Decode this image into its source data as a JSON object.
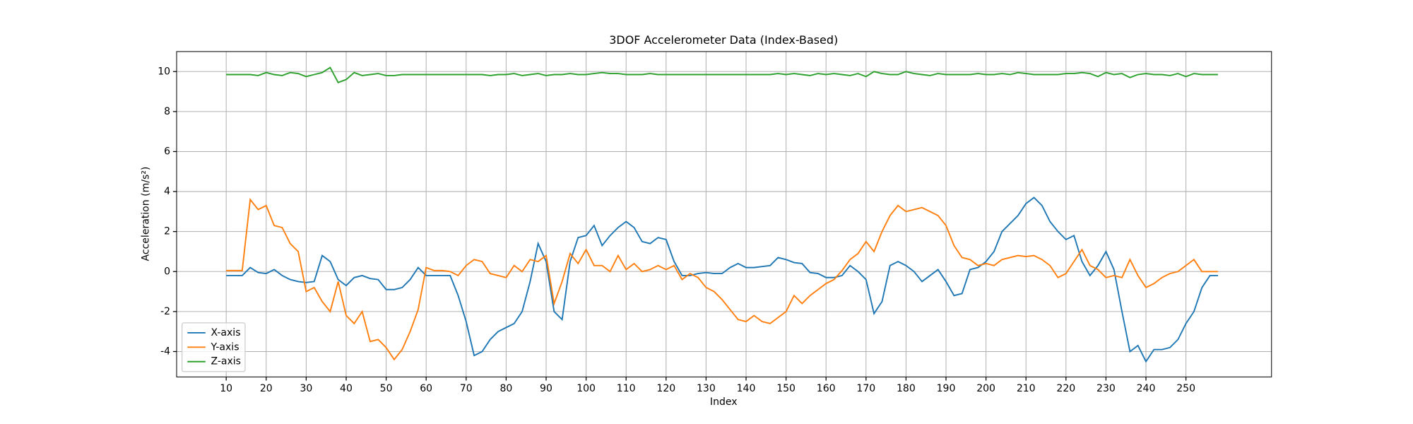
{
  "chart_data": {
    "type": "line",
    "title": "3DOF Accelerometer Data (Index-Based)",
    "x_label": "Index",
    "y_label": "Acceleration (m/s²)",
    "x": [
      10,
      12,
      14,
      16,
      18,
      20,
      22,
      24,
      26,
      28,
      30,
      32,
      34,
      36,
      38,
      40,
      42,
      44,
      46,
      48,
      50,
      52,
      54,
      56,
      58,
      60,
      62,
      64,
      66,
      68,
      70,
      72,
      74,
      76,
      78,
      80,
      82,
      84,
      86,
      88,
      90,
      92,
      94,
      96,
      98,
      100,
      102,
      104,
      106,
      108,
      110,
      112,
      114,
      116,
      118,
      120,
      122,
      124,
      126,
      128,
      130,
      132,
      134,
      136,
      138,
      140,
      142,
      144,
      146,
      148,
      150,
      152,
      154,
      156,
      158,
      160,
      162,
      164,
      166,
      168,
      170,
      172,
      174,
      176,
      178,
      180,
      182,
      184,
      186,
      188,
      190,
      192,
      194,
      196,
      198,
      200,
      202,
      204,
      206,
      208,
      210,
      212,
      214,
      216,
      218,
      220,
      222,
      224,
      226,
      228,
      230,
      232,
      234,
      236,
      238,
      240,
      242,
      244,
      246,
      248,
      250,
      252,
      254,
      256,
      258
    ],
    "series": [
      {
        "name": "X-axis",
        "color": "#1f77b4",
        "values": [
          -0.2,
          -0.2,
          -0.2,
          0.2,
          -0.05,
          -0.1,
          0.1,
          -0.2,
          -0.4,
          -0.5,
          -0.55,
          -0.5,
          0.8,
          0.5,
          -0.4,
          -0.7,
          -0.3,
          -0.2,
          -0.35,
          -0.4,
          -0.9,
          -0.9,
          -0.8,
          -0.4,
          0.2,
          -0.2,
          -0.2,
          -0.2,
          -0.2,
          -1.2,
          -2.5,
          -4.2,
          -4.0,
          -3.4,
          -3.0,
          -2.8,
          -2.6,
          -2.0,
          -0.5,
          1.4,
          0.5,
          -2.0,
          -2.4,
          0.5,
          1.7,
          1.8,
          2.3,
          1.3,
          1.8,
          2.2,
          2.5,
          2.2,
          1.5,
          1.4,
          1.7,
          1.6,
          0.5,
          -0.2,
          -0.2,
          -0.1,
          -0.05,
          -0.1,
          -0.1,
          0.2,
          0.4,
          0.2,
          0.2,
          0.25,
          0.3,
          0.7,
          0.6,
          0.45,
          0.4,
          -0.05,
          -0.1,
          -0.3,
          -0.3,
          -0.2,
          0.3,
          0.0,
          -0.4,
          -2.1,
          -1.5,
          0.3,
          0.5,
          0.3,
          0.0,
          -0.5,
          -0.2,
          0.1,
          -0.5,
          -1.2,
          -1.1,
          0.1,
          0.2,
          0.5,
          1.0,
          2.0,
          2.4,
          2.8,
          3.4,
          3.7,
          3.3,
          2.5,
          2.0,
          1.6,
          1.8,
          0.5,
          -0.2,
          0.3,
          1.0,
          0.1,
          -2.0,
          -4.0,
          -3.7,
          -4.5,
          -3.9,
          -3.9,
          -3.8,
          -3.4,
          -2.6,
          -2.0,
          -0.8,
          -0.2,
          -0.2
        ]
      },
      {
        "name": "Y-axis",
        "color": "#ff7f0e",
        "values": [
          0.05,
          0.05,
          0.05,
          3.6,
          3.1,
          3.3,
          2.3,
          2.2,
          1.4,
          1.0,
          -1.0,
          -0.8,
          -1.5,
          -2.0,
          -0.5,
          -2.2,
          -2.6,
          -2.0,
          -3.5,
          -3.4,
          -3.8,
          -4.4,
          -3.9,
          -3.0,
          -1.9,
          0.2,
          0.05,
          0.05,
          0.0,
          -0.2,
          0.3,
          0.6,
          0.5,
          -0.1,
          -0.2,
          -0.3,
          0.3,
          0.0,
          0.6,
          0.5,
          0.8,
          -1.6,
          -0.5,
          0.9,
          0.4,
          1.1,
          0.3,
          0.3,
          0.0,
          0.8,
          0.1,
          0.4,
          0.0,
          0.1,
          0.3,
          0.1,
          0.3,
          -0.4,
          -0.1,
          -0.3,
          -0.8,
          -1.0,
          -1.4,
          -1.9,
          -2.4,
          -2.5,
          -2.2,
          -2.5,
          -2.6,
          -2.3,
          -2.0,
          -1.2,
          -1.6,
          -1.2,
          -0.9,
          -0.6,
          -0.4,
          0.05,
          0.6,
          0.9,
          1.5,
          1.0,
          2.0,
          2.8,
          3.3,
          3.0,
          3.1,
          3.2,
          3.0,
          2.8,
          2.3,
          1.3,
          0.7,
          0.6,
          0.3,
          0.4,
          0.3,
          0.6,
          0.7,
          0.8,
          0.75,
          0.8,
          0.6,
          0.3,
          -0.3,
          -0.1,
          0.5,
          1.1,
          0.3,
          0.1,
          -0.3,
          -0.2,
          -0.3,
          0.6,
          -0.2,
          -0.8,
          -0.6,
          -0.3,
          -0.1,
          0.0,
          0.3,
          0.6,
          0.0,
          0.0,
          0.0
        ]
      },
      {
        "name": "Z-axis",
        "color": "#2ca02c",
        "values": [
          9.85,
          9.85,
          9.85,
          9.85,
          9.8,
          9.95,
          9.85,
          9.8,
          9.95,
          9.9,
          9.75,
          9.85,
          9.95,
          10.2,
          9.45,
          9.6,
          9.95,
          9.8,
          9.85,
          9.9,
          9.8,
          9.8,
          9.85,
          9.85,
          9.85,
          9.85,
          9.85,
          9.85,
          9.85,
          9.85,
          9.85,
          9.85,
          9.85,
          9.8,
          9.85,
          9.85,
          9.9,
          9.8,
          9.85,
          9.9,
          9.8,
          9.85,
          9.85,
          9.9,
          9.85,
          9.85,
          9.9,
          9.95,
          9.9,
          9.9,
          9.85,
          9.85,
          9.85,
          9.9,
          9.85,
          9.85,
          9.85,
          9.85,
          9.85,
          9.85,
          9.85,
          9.85,
          9.85,
          9.85,
          9.85,
          9.85,
          9.85,
          9.85,
          9.85,
          9.9,
          9.85,
          9.9,
          9.85,
          9.8,
          9.9,
          9.85,
          9.9,
          9.85,
          9.8,
          9.9,
          9.75,
          10.0,
          9.9,
          9.85,
          9.85,
          10.0,
          9.9,
          9.85,
          9.8,
          9.9,
          9.85,
          9.85,
          9.85,
          9.85,
          9.9,
          9.85,
          9.85,
          9.9,
          9.85,
          9.95,
          9.9,
          9.85,
          9.85,
          9.85,
          9.85,
          9.9,
          9.9,
          9.95,
          9.9,
          9.75,
          9.95,
          9.85,
          9.9,
          9.7,
          9.85,
          9.9,
          9.85,
          9.85,
          9.8,
          9.9,
          9.75,
          9.9,
          9.85,
          9.85,
          9.85
        ]
      }
    ],
    "xlim": [
      -2.4,
      271.4
    ],
    "ylim": [
      -5.27,
      11.0
    ],
    "xticks": [
      10,
      20,
      30,
      40,
      50,
      60,
      70,
      80,
      90,
      100,
      110,
      120,
      130,
      140,
      150,
      160,
      170,
      180,
      190,
      200,
      210,
      220,
      230,
      240,
      250
    ],
    "yticks": [
      -4,
      -2,
      0,
      2,
      4,
      6,
      8,
      10
    ],
    "grid": true,
    "legend": "lower left"
  }
}
